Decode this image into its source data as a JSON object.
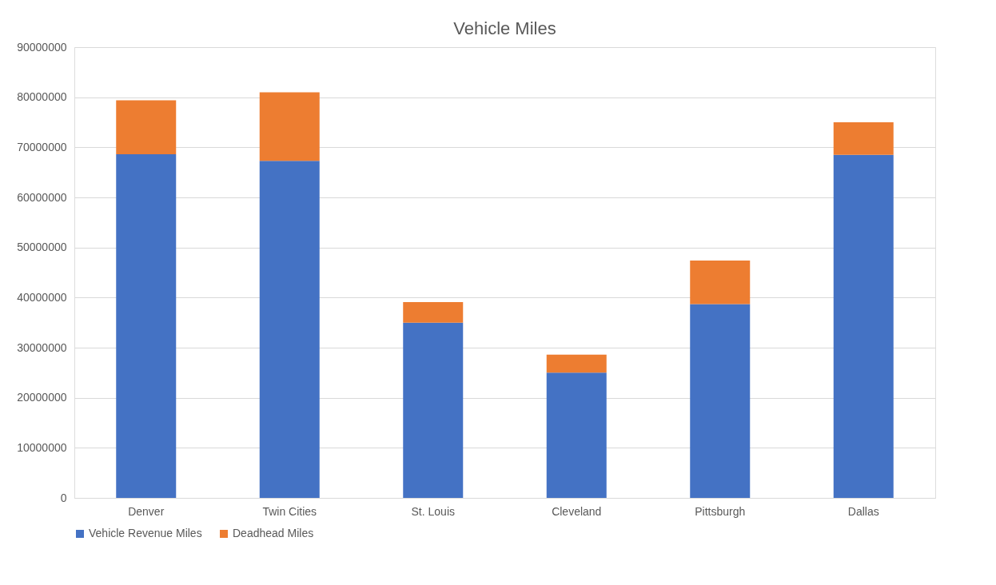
{
  "chart_data": {
    "type": "bar",
    "title": "Vehicle Miles",
    "stacked": true,
    "categories": [
      "Denver",
      "Twin Cities",
      "St. Louis",
      "Cleveland",
      "Pittsburgh",
      "Dallas"
    ],
    "series": [
      {
        "name": "Vehicle Revenue Miles",
        "color": "#4472c4",
        "values": [
          68600000,
          67300000,
          35000000,
          25000000,
          38700000,
          68500000
        ]
      },
      {
        "name": "Deadhead Miles",
        "color": "#ed7d31",
        "values": [
          10800000,
          13700000,
          4100000,
          3600000,
          8700000,
          6500000
        ]
      }
    ],
    "ylim": [
      0,
      90000000
    ],
    "yticks": [
      0,
      10000000,
      20000000,
      30000000,
      40000000,
      50000000,
      60000000,
      70000000,
      80000000,
      90000000
    ],
    "grid": "y",
    "legend": "bottom"
  }
}
